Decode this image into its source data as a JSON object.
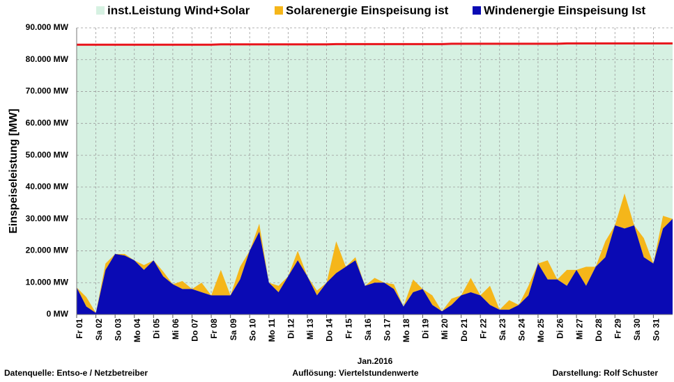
{
  "chart_data": {
    "type": "area",
    "legend_position": "top",
    "y_label": "Einspeiseleistung  [MW]",
    "x_label": "Jan.2016",
    "footer_left": "Datenquelle:  Entso-e  / Netzbetreiber",
    "footer_center": "Auflösung: Viertelstundenwerte",
    "footer_right": "Darstellung: Rolf Schuster",
    "grid": true,
    "ylim": [
      0,
      90000
    ],
    "yticks": [
      {
        "value": 0,
        "label": "0 MW"
      },
      {
        "value": 10000,
        "label": "10.000 MW"
      },
      {
        "value": 20000,
        "label": "20.000 MW"
      },
      {
        "value": 30000,
        "label": "30.000 MW"
      },
      {
        "value": 40000,
        "label": "40.000 MW"
      },
      {
        "value": 50000,
        "label": "50.000 MW"
      },
      {
        "value": 60000,
        "label": "60.000 MW"
      },
      {
        "value": 70000,
        "label": "70.000 MW"
      },
      {
        "value": 80000,
        "label": "80.000 MW"
      },
      {
        "value": 90000,
        "label": "90.000 MW"
      }
    ],
    "xlim": [
      0,
      31
    ],
    "xticks": [
      {
        "value": 0,
        "label": "Fr 01"
      },
      {
        "value": 1,
        "label": "Sa 02"
      },
      {
        "value": 2,
        "label": "So 03"
      },
      {
        "value": 3,
        "label": "Mo 04"
      },
      {
        "value": 4,
        "label": "Di 05"
      },
      {
        "value": 5,
        "label": "Mi 06"
      },
      {
        "value": 6,
        "label": "Do 07"
      },
      {
        "value": 7,
        "label": "Fr 08"
      },
      {
        "value": 8,
        "label": "Sa 09"
      },
      {
        "value": 9,
        "label": "So 10"
      },
      {
        "value": 10,
        "label": "Mo 11"
      },
      {
        "value": 11,
        "label": "Di 12"
      },
      {
        "value": 12,
        "label": "Mi 13"
      },
      {
        "value": 13,
        "label": "Do 14"
      },
      {
        "value": 14,
        "label": "Fr 15"
      },
      {
        "value": 15,
        "label": "Sa 16"
      },
      {
        "value": 16,
        "label": "So 17"
      },
      {
        "value": 17,
        "label": "Mo 18"
      },
      {
        "value": 18,
        "label": "Di 19"
      },
      {
        "value": 19,
        "label": "Mi 20"
      },
      {
        "value": 20,
        "label": "Do 21"
      },
      {
        "value": 21,
        "label": "Fr 22"
      },
      {
        "value": 22,
        "label": "Sa 23"
      },
      {
        "value": 23,
        "label": "So 24"
      },
      {
        "value": 24,
        "label": "Mo 25"
      },
      {
        "value": 25,
        "label": "Di 26"
      },
      {
        "value": 26,
        "label": "Mi 27"
      },
      {
        "value": 27,
        "label": "Do 28"
      },
      {
        "value": 28,
        "label": "Fr 29"
      },
      {
        "value": 29,
        "label": "Sa 30"
      },
      {
        "value": 30,
        "label": "So 31"
      }
    ],
    "x": [
      0,
      0.5,
      1,
      1.5,
      2,
      2.5,
      3,
      3.5,
      4,
      4.5,
      5,
      5.5,
      6,
      6.5,
      7,
      7.5,
      8,
      8.5,
      9,
      9.5,
      10,
      10.5,
      11,
      11.5,
      12,
      12.5,
      13,
      13.5,
      14,
      14.5,
      15,
      15.5,
      16,
      16.5,
      17,
      17.5,
      18,
      18.5,
      19,
      19.5,
      20,
      20.5,
      21,
      21.5,
      22,
      22.5,
      23,
      23.5,
      24,
      24.5,
      25,
      25.5,
      26,
      26.5,
      27,
      27.5,
      28,
      28.5,
      29,
      29.5,
      30,
      30.5,
      31
    ],
    "series": [
      {
        "name": "inst.Leistung Wind+Solar",
        "color": "#d6f1e2",
        "line_color": "#e8141b",
        "values": [
          84700,
          84700,
          84700,
          84700,
          84700,
          84700,
          84700,
          84700,
          84700,
          84700,
          84700,
          84700,
          84700,
          84700,
          84700,
          84800,
          84800,
          84800,
          84800,
          84800,
          84800,
          84800,
          84800,
          84800,
          84800,
          84800,
          84800,
          84900,
          84900,
          84900,
          84900,
          84900,
          84900,
          84900,
          84900,
          84900,
          84900,
          84900,
          84900,
          85000,
          85000,
          85000,
          85000,
          85000,
          85000,
          85000,
          85000,
          85000,
          85000,
          85000,
          85000,
          85100,
          85100,
          85100,
          85100,
          85100,
          85100,
          85100,
          85100,
          85100,
          85100,
          85100,
          85100
        ]
      },
      {
        "name": "Solarenergie Einspeisung ist",
        "color": "#f5b61a",
        "values": [
          0,
          3000,
          0,
          2000,
          0,
          500,
          0,
          1500,
          0,
          1500,
          0,
          2500,
          0,
          3000,
          0,
          8000,
          0,
          4000,
          0,
          2500,
          0,
          2000,
          0,
          3000,
          0,
          1500,
          0,
          10000,
          0,
          1000,
          0,
          1500,
          0,
          1500,
          0,
          4000,
          0,
          3000,
          0,
          2000,
          0,
          4500,
          0,
          6000,
          0,
          3000,
          0,
          3000,
          0,
          6000,
          0,
          5000,
          0,
          6000,
          0,
          5000,
          0,
          11000,
          0,
          6000,
          0,
          4000,
          0
        ]
      },
      {
        "name": "Windenergie Einspeisung Ist",
        "color": "#0a0ab4",
        "values": [
          8500,
          2500,
          500,
          14000,
          19000,
          18500,
          17000,
          14000,
          17000,
          12000,
          9500,
          8000,
          8000,
          7000,
          6000,
          6000,
          6000,
          11000,
          20000,
          26000,
          10000,
          7000,
          12000,
          17000,
          12000,
          6000,
          10000,
          13000,
          15000,
          17000,
          9000,
          10000,
          10000,
          8000,
          2500,
          7000,
          8000,
          3000,
          1000,
          3000,
          6000,
          7000,
          6000,
          3000,
          1500,
          1500,
          3000,
          6000,
          16000,
          11000,
          11000,
          9000,
          14000,
          9000,
          15000,
          18000,
          28000,
          27000,
          28000,
          18000,
          16000,
          27000,
          30000
        ]
      }
    ]
  }
}
